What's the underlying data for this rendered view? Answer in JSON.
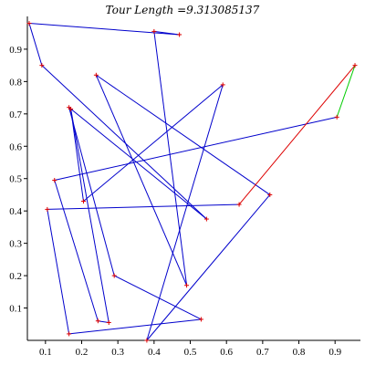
{
  "chart_data": {
    "type": "line",
    "title": "Tour Length =9.313085137",
    "xlabel": "",
    "ylabel": "",
    "xlim": [
      0.05,
      0.96
    ],
    "ylim": [
      0.0,
      0.99
    ],
    "x_ticks": [
      "0.1",
      "0.2",
      "0.3",
      "0.4",
      "0.5",
      "0.6",
      "0.7",
      "0.8",
      "0.9"
    ],
    "x_tick_values": [
      0.1,
      0.2,
      0.3,
      0.4,
      0.5,
      0.6,
      0.7,
      0.8,
      0.9
    ],
    "y_ticks": [
      "0.1",
      "0.2",
      "0.3",
      "0.4",
      "0.5",
      "0.6",
      "0.7",
      "0.8",
      "0.9"
    ],
    "y_tick_values": [
      0.1,
      0.2,
      0.3,
      0.4,
      0.5,
      0.6,
      0.7,
      0.8,
      0.9
    ],
    "grid": false,
    "colors": {
      "tour": "#0000cc",
      "start_edge": "#dd0000",
      "end_edge": "#00cc00",
      "marker": "#dd0000",
      "axis": "#000000"
    },
    "start_edge": {
      "from": [
        0.635,
        0.42
      ],
      "to": [
        0.955,
        0.85
      ]
    },
    "end_edge": {
      "from": [
        0.955,
        0.85
      ],
      "to": [
        0.905,
        0.69
      ]
    },
    "tour_points": [
      [
        0.905,
        0.69
      ],
      [
        0.125,
        0.495
      ],
      [
        0.245,
        0.06
      ],
      [
        0.275,
        0.055
      ],
      [
        0.17,
        0.715
      ],
      [
        0.205,
        0.43
      ],
      [
        0.59,
        0.79
      ],
      [
        0.38,
        0.0
      ],
      [
        0.72,
        0.45
      ],
      [
        0.24,
        0.82
      ],
      [
        0.49,
        0.17
      ],
      [
        0.4,
        0.955
      ],
      [
        0.47,
        0.945
      ],
      [
        0.055,
        0.98
      ],
      [
        0.09,
        0.85
      ],
      [
        0.545,
        0.375
      ],
      [
        0.165,
        0.72
      ],
      [
        0.29,
        0.2
      ],
      [
        0.53,
        0.065
      ],
      [
        0.165,
        0.02
      ],
      [
        0.105,
        0.405
      ],
      [
        0.635,
        0.42
      ]
    ]
  }
}
